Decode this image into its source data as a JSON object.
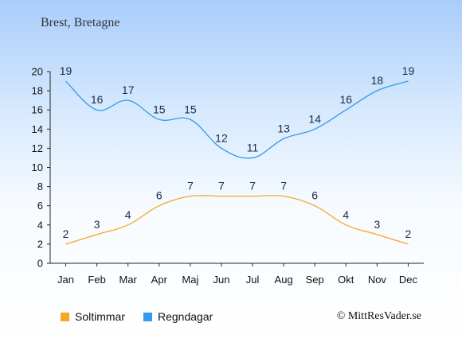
{
  "title": "Brest, Bretagne",
  "copyright": "© MittResVader.se",
  "chart_data": {
    "type": "line",
    "categories": [
      "Jan",
      "Feb",
      "Mar",
      "Apr",
      "Maj",
      "Jun",
      "Jul",
      "Aug",
      "Sep",
      "Okt",
      "Nov",
      "Dec"
    ],
    "ylim": [
      0,
      20
    ],
    "yticks": [
      0,
      2,
      4,
      6,
      8,
      10,
      12,
      14,
      16,
      18,
      20
    ],
    "grid": false,
    "legend_position": "bottom-left",
    "series": [
      {
        "name": "Soltimmar",
        "color": "#f5a623",
        "values": [
          2,
          3,
          4,
          6,
          7,
          7,
          7,
          7,
          6,
          4,
          3,
          2
        ]
      },
      {
        "name": "Regndagar",
        "color": "#3399ee",
        "values": [
          19,
          16,
          17,
          15,
          15,
          12,
          11,
          13,
          14,
          16,
          18,
          19
        ]
      }
    ]
  }
}
